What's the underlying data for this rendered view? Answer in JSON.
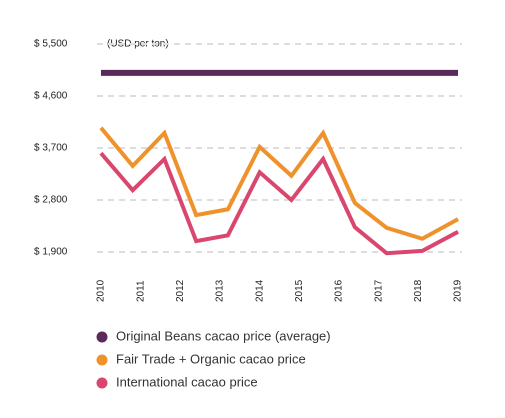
{
  "chart_data": {
    "type": "line",
    "annotation": "(USD per ton)",
    "x": [
      2010,
      2010.8,
      2011.6,
      2012.4,
      2013.2,
      2014,
      2014.8,
      2015.6,
      2016.4,
      2017.2,
      2018.1,
      2019
    ],
    "xlim": [
      2009.9,
      2019.1
    ],
    "xticks": [
      2010,
      2011,
      2012,
      2013,
      2014,
      2015,
      2016,
      2017,
      2018,
      2019
    ],
    "ylim": [
      1700,
      5500
    ],
    "yticks": [
      {
        "value": 1900,
        "label": "$ 1,900"
      },
      {
        "value": 2800,
        "label": "$ 2,800"
      },
      {
        "value": 3700,
        "label": "$ 3,700"
      },
      {
        "value": 4600,
        "label": "$ 4,600"
      },
      {
        "value": 5500,
        "label": "$ 5,500"
      }
    ],
    "grid": true,
    "series": [
      {
        "name": "Original Beans cacao price (average)",
        "color": "#5a2a5c",
        "values": [
          5000,
          5000,
          5000,
          5000,
          5000,
          5000,
          5000,
          5000,
          5000,
          5000,
          5000,
          5000
        ]
      },
      {
        "name": "Fair Trade + Organic cacao price",
        "color": "#f0922b",
        "values": [
          4050,
          3390,
          3960,
          2540,
          2640,
          3720,
          3220,
          3960,
          2750,
          2320,
          2130,
          2470
        ]
      },
      {
        "name": "International cacao price",
        "color": "#d9476e",
        "values": [
          3610,
          2970,
          3510,
          2090,
          2190,
          3280,
          2800,
          3510,
          2330,
          1880,
          1920,
          2250
        ]
      }
    ]
  }
}
